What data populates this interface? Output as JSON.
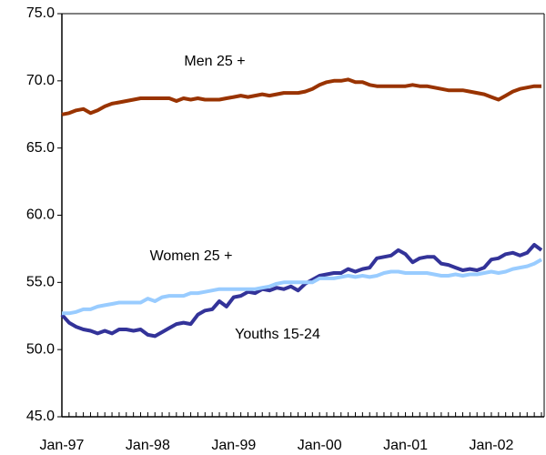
{
  "chart_data": {
    "type": "line",
    "annotations": [
      "Men 25 +",
      "Women 25 +",
      "Youths 15-24"
    ],
    "categories": [
      "Jan-97",
      null,
      null,
      null,
      null,
      null,
      null,
      null,
      null,
      null,
      null,
      null,
      "Jan-98",
      null,
      null,
      null,
      null,
      null,
      null,
      null,
      null,
      null,
      null,
      null,
      "Jan-99",
      null,
      null,
      null,
      null,
      null,
      null,
      null,
      null,
      null,
      null,
      null,
      "Jan-00",
      null,
      null,
      null,
      null,
      null,
      null,
      null,
      null,
      null,
      null,
      null,
      "Jan-01",
      null,
      null,
      null,
      null,
      null,
      null,
      null,
      null,
      null,
      null,
      null,
      "Jan-02",
      null,
      null,
      null,
      null,
      null,
      null,
      null
    ],
    "series": [
      {
        "name": "Men 25 +",
        "color": "#993300",
        "values": [
          67.5,
          67.6,
          67.8,
          67.9,
          67.6,
          67.8,
          68.1,
          68.3,
          68.4,
          68.5,
          68.6,
          68.7,
          68.7,
          68.7,
          68.7,
          68.7,
          68.5,
          68.7,
          68.6,
          68.7,
          68.6,
          68.6,
          68.6,
          68.7,
          68.8,
          68.9,
          68.8,
          68.9,
          69.0,
          68.9,
          69.0,
          69.1,
          69.1,
          69.1,
          69.2,
          69.4,
          69.7,
          69.9,
          70.0,
          70.0,
          70.1,
          69.9,
          69.9,
          69.7,
          69.6,
          69.6,
          69.6,
          69.6,
          69.6,
          69.7,
          69.6,
          69.6,
          69.5,
          69.4,
          69.3,
          69.3,
          69.3,
          69.2,
          69.1,
          69.0,
          68.8,
          68.6,
          68.9,
          69.2,
          69.4,
          69.5,
          69.6,
          69.6
        ]
      },
      {
        "name": "Women 25 +",
        "color": "#333399",
        "values": [
          52.6,
          52.0,
          51.7,
          51.5,
          51.4,
          51.2,
          51.4,
          51.2,
          51.5,
          51.5,
          51.4,
          51.5,
          51.1,
          51.0,
          51.3,
          51.6,
          51.9,
          52.0,
          51.9,
          52.6,
          52.9,
          53.0,
          53.6,
          53.2,
          53.9,
          54.0,
          54.3,
          54.2,
          54.5,
          54.4,
          54.6,
          54.5,
          54.7,
          54.4,
          54.9,
          55.2,
          55.5,
          55.6,
          55.7,
          55.7,
          56.0,
          55.8,
          56.0,
          56.1,
          56.8,
          56.9,
          57.0,
          57.4,
          57.1,
          56.5,
          56.8,
          56.9,
          56.9,
          56.4,
          56.3,
          56.1,
          55.9,
          56.0,
          55.9,
          56.1,
          56.7,
          56.8,
          57.1,
          57.2,
          57.0,
          57.2,
          57.8,
          57.4
        ]
      },
      {
        "name": "Youths 15-24",
        "color": "#99ccff",
        "values": [
          52.7,
          52.7,
          52.8,
          53.0,
          53.0,
          53.2,
          53.3,
          53.4,
          53.5,
          53.5,
          53.5,
          53.5,
          53.8,
          53.6,
          53.9,
          54.0,
          54.0,
          54.0,
          54.2,
          54.2,
          54.3,
          54.4,
          54.5,
          54.5,
          54.5,
          54.5,
          54.5,
          54.5,
          54.6,
          54.7,
          54.9,
          55.0,
          55.0,
          55.0,
          55.0,
          55.0,
          55.3,
          55.3,
          55.3,
          55.4,
          55.5,
          55.4,
          55.5,
          55.4,
          55.5,
          55.7,
          55.8,
          55.8,
          55.7,
          55.7,
          55.7,
          55.7,
          55.6,
          55.5,
          55.5,
          55.6,
          55.5,
          55.6,
          55.6,
          55.7,
          55.8,
          55.7,
          55.8,
          56.0,
          56.1,
          56.2,
          56.4,
          56.7
        ]
      }
    ],
    "ylim": [
      45,
      75
    ],
    "yticks": [
      {
        "value": 45,
        "label": "45.0"
      },
      {
        "value": 50,
        "label": "50.0"
      },
      {
        "value": 55,
        "label": "55.0"
      },
      {
        "value": 60,
        "label": "60.0"
      },
      {
        "value": 65,
        "label": "65.0"
      },
      {
        "value": 70,
        "label": "70.0"
      },
      {
        "value": 75,
        "label": "75.0"
      }
    ],
    "grid": false
  }
}
